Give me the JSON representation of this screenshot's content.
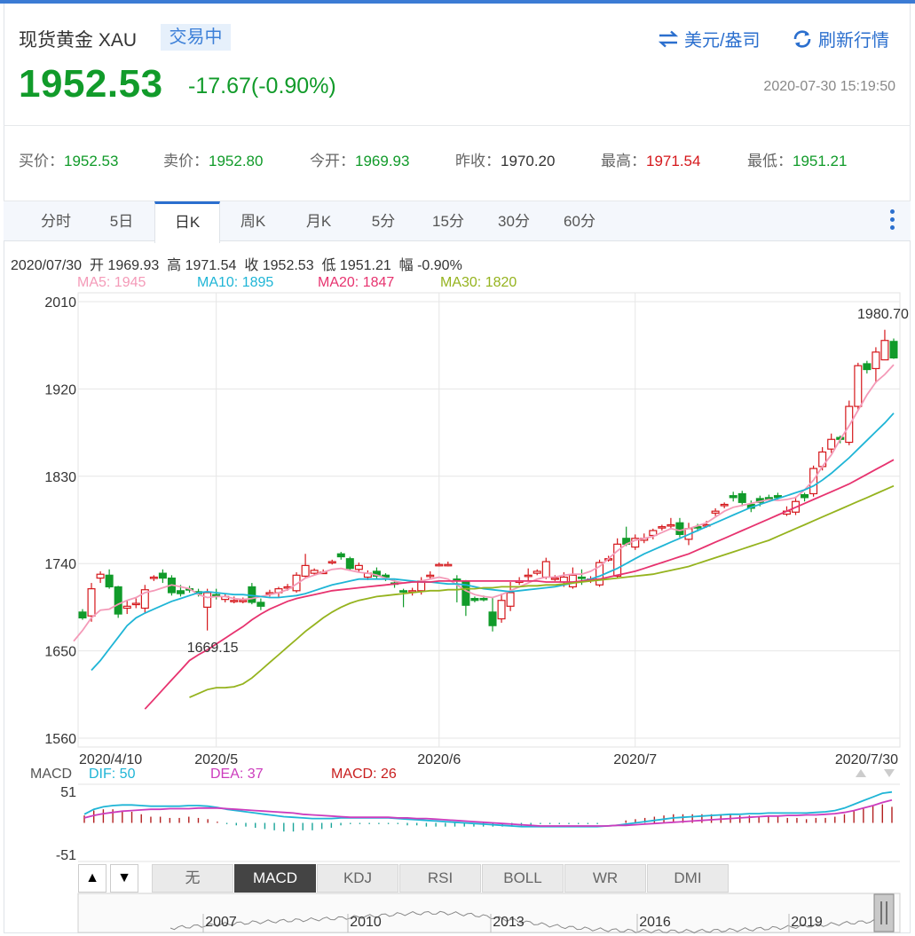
{
  "header": {
    "title": "现货黄金 XAU",
    "status": "交易中",
    "currency_link": "美元/盎司",
    "refresh_link": "刷新行情",
    "price": "1952.53",
    "change": "-17.67(-0.90%)",
    "timestamp": "2020-07-30 15:19:50"
  },
  "quote": [
    {
      "label": "买价：",
      "value": "1952.53",
      "color": "g"
    },
    {
      "label": "卖价：",
      "value": "1952.80",
      "color": "g"
    },
    {
      "label": "今开：",
      "value": "1969.93",
      "color": "g"
    },
    {
      "label": "昨收：",
      "value": "1970.20",
      "color": "k"
    },
    {
      "label": "最高：",
      "value": "1971.54",
      "color": "r"
    },
    {
      "label": "最低：",
      "value": "1951.21",
      "color": "g"
    }
  ],
  "tabs": [
    "分时",
    "5日",
    "日K",
    "周K",
    "月K",
    "5分",
    "15分",
    "30分",
    "60分"
  ],
  "active_tab": "日K",
  "info_line": "2020/07/30  开 1969.93  高 1971.54  收 1952.53  低 1951.21  幅 -0.90%",
  "ma_legend": [
    {
      "label": "MA5: 1945",
      "color": "#f49ab8"
    },
    {
      "label": "MA10: 1895",
      "color": "#1fb5d6"
    },
    {
      "label": "MA20: 1847",
      "color": "#e7336f"
    },
    {
      "label": "MA30: 1820",
      "color": "#95b31e"
    }
  ],
  "macd_legend": {
    "title": "MACD",
    "dif": "DIF: 50",
    "dea": "DEA: 37",
    "macd": "MACD: 26"
  },
  "indicator_buttons": [
    "无",
    "MACD",
    "KDJ",
    "RSI",
    "BOLL",
    "WR",
    "DMI"
  ],
  "active_indicator": "MACD",
  "nav_years": [
    "2007",
    "2010",
    "2013",
    "2016",
    "2019"
  ],
  "colors": {
    "up": "#d5171b",
    "down": "#119b2a",
    "accent": "#2b6fce"
  },
  "chart_data": {
    "type": "candlestick",
    "y_ticks": [
      "2010",
      "1920",
      "1830",
      "1740",
      "1650",
      "1560"
    ],
    "ylim": [
      1560,
      2010
    ],
    "x_labels": [
      "2020/4/10",
      "2020/5",
      "2020/6",
      "2020/7",
      "2020/7/30"
    ],
    "annotations": [
      "1980.70",
      "1669.15"
    ],
    "candles": [
      [
        1690,
        1684,
        1693,
        1682
      ],
      [
        1686,
        1714,
        1720,
        1680
      ],
      [
        1725,
        1729,
        1732,
        1720
      ],
      [
        1728,
        1716,
        1734,
        1714
      ],
      [
        1716,
        1688,
        1717,
        1684
      ],
      [
        1694,
        1696,
        1702,
        1688
      ],
      [
        1699,
        1699,
        1704,
        1694
      ],
      [
        1694,
        1713,
        1718,
        1689
      ],
      [
        1726,
        1726,
        1728,
        1722
      ],
      [
        1730,
        1725,
        1734,
        1720
      ],
      [
        1725,
        1710,
        1728,
        1707
      ],
      [
        1712,
        1709,
        1718,
        1706
      ],
      [
        1714,
        1713,
        1717,
        1710
      ],
      [
        1711,
        1709,
        1714,
        1706
      ],
      [
        1695,
        1710,
        1714,
        1671
      ],
      [
        1708,
        1707,
        1714,
        1703
      ],
      [
        1703,
        1706,
        1709,
        1700
      ],
      [
        1702,
        1702,
        1706,
        1699
      ],
      [
        1702,
        1702,
        1705,
        1699
      ],
      [
        1716,
        1700,
        1720,
        1698
      ],
      [
        1700,
        1696,
        1704,
        1692
      ],
      [
        1710,
        1710,
        1713,
        1706
      ],
      [
        1710,
        1714,
        1716,
        1705
      ],
      [
        1716,
        1716,
        1719,
        1712
      ],
      [
        1712,
        1728,
        1731,
        1710
      ],
      [
        1727,
        1738,
        1750,
        1725
      ],
      [
        1730,
        1733,
        1735,
        1728
      ],
      [
        1731,
        1731,
        1734,
        1730
      ],
      [
        1742,
        1742,
        1744,
        1739
      ],
      [
        1750,
        1747,
        1752,
        1744
      ],
      [
        1745,
        1735,
        1747,
        1733
      ],
      [
        1734,
        1738,
        1741,
        1731
      ],
      [
        1726,
        1730,
        1733,
        1723
      ],
      [
        1732,
        1727,
        1736,
        1724
      ],
      [
        1728,
        1726,
        1730,
        1722
      ],
      [
        1720,
        1719,
        1723,
        1715
      ],
      [
        1712,
        1711,
        1714,
        1695
      ],
      [
        1711,
        1712,
        1715,
        1707
      ],
      [
        1712,
        1722,
        1726,
        1708
      ],
      [
        1727,
        1728,
        1732,
        1724
      ],
      [
        1738,
        1739,
        1741,
        1737
      ],
      [
        1739,
        1739,
        1742,
        1737
      ],
      [
        1724,
        1723,
        1728,
        1700
      ],
      [
        1721,
        1697,
        1723,
        1686
      ],
      [
        1704,
        1702,
        1706,
        1700
      ],
      [
        1704,
        1703,
        1707,
        1701
      ],
      [
        1690,
        1676,
        1705,
        1670
      ],
      [
        1683,
        1702,
        1709,
        1679
      ],
      [
        1696,
        1710,
        1721,
        1691
      ],
      [
        1722,
        1722,
        1726,
        1718
      ],
      [
        1727,
        1728,
        1735,
        1722
      ],
      [
        1730,
        1732,
        1734,
        1728
      ],
      [
        1726,
        1742,
        1746,
        1724
      ],
      [
        1725,
        1725,
        1728,
        1722
      ],
      [
        1721,
        1726,
        1731,
        1716
      ],
      [
        1716,
        1728,
        1736,
        1714
      ],
      [
        1726,
        1725,
        1734,
        1718
      ],
      [
        1724,
        1724,
        1727,
        1720
      ],
      [
        1718,
        1741,
        1744,
        1716
      ],
      [
        1745,
        1745,
        1748,
        1742
      ],
      [
        1727,
        1760,
        1766,
        1725
      ],
      [
        1766,
        1760,
        1778,
        1758
      ],
      [
        1757,
        1766,
        1770,
        1754
      ],
      [
        1764,
        1766,
        1771,
        1761
      ],
      [
        1769,
        1774,
        1776,
        1765
      ],
      [
        1777,
        1778,
        1780,
        1774
      ],
      [
        1779,
        1780,
        1787,
        1776
      ],
      [
        1782,
        1770,
        1787,
        1767
      ],
      [
        1765,
        1776,
        1782,
        1759
      ],
      [
        1778,
        1777,
        1781,
        1773
      ],
      [
        1779,
        1780,
        1784,
        1777
      ],
      [
        1792,
        1794,
        1797,
        1789
      ],
      [
        1800,
        1801,
        1803,
        1797
      ],
      [
        1810,
        1808,
        1814,
        1804
      ],
      [
        1812,
        1803,
        1815,
        1799
      ],
      [
        1801,
        1797,
        1805,
        1793
      ],
      [
        1807,
        1803,
        1810,
        1799
      ],
      [
        1808,
        1807,
        1811,
        1805
      ],
      [
        1810,
        1808,
        1813,
        1806
      ],
      [
        1791,
        1794,
        1799,
        1789
      ],
      [
        1793,
        1804,
        1809,
        1790
      ],
      [
        1811,
        1808,
        1813,
        1804
      ],
      [
        1812,
        1838,
        1841,
        1809
      ],
      [
        1840,
        1855,
        1860,
        1836
      ],
      [
        1858,
        1868,
        1874,
        1854
      ],
      [
        1870,
        1868,
        1872,
        1864
      ],
      [
        1865,
        1902,
        1908,
        1862
      ],
      [
        1902,
        1944,
        1947,
        1898
      ],
      [
        1946,
        1940,
        1949,
        1936
      ],
      [
        1941,
        1958,
        1963,
        1926
      ],
      [
        1950,
        1970,
        1981,
        1950
      ],
      [
        1969,
        1952,
        1972,
        1951
      ]
    ],
    "ma": {
      "MA5": [
        1660,
        1671,
        1684,
        1692,
        1693,
        1698,
        1702,
        1705,
        1710,
        1712,
        1715,
        1718,
        1716,
        1714,
        1708,
        1705,
        1706,
        1706,
        1704,
        1703,
        1704,
        1706,
        1708,
        1710,
        1713,
        1719,
        1725,
        1728,
        1731,
        1734,
        1735,
        1733,
        1731,
        1730,
        1728,
        1725,
        1722,
        1720,
        1721,
        1722,
        1724,
        1726,
        1724,
        1718,
        1712,
        1708,
        1706,
        1705,
        1708,
        1712,
        1716,
        1720,
        1724,
        1726,
        1726,
        1728,
        1729,
        1729,
        1732,
        1737,
        1745,
        1753,
        1760,
        1764,
        1766,
        1768,
        1772,
        1776,
        1774,
        1776,
        1779,
        1782,
        1788,
        1794,
        1798,
        1800,
        1802,
        1804,
        1806,
        1805,
        1806,
        1808,
        1816,
        1826,
        1840,
        1852,
        1868,
        1882,
        1898,
        1914,
        1927,
        1935,
        1945
      ],
      "MA10": [
        1630,
        1640,
        1652,
        1664,
        1676,
        1684,
        1689,
        1693,
        1697,
        1701,
        1704,
        1707,
        1710,
        1711,
        1710,
        1709,
        1708,
        1708,
        1707,
        1706,
        1705,
        1705,
        1706,
        1707,
        1709,
        1712,
        1715,
        1718,
        1720,
        1722,
        1724,
        1724,
        1724,
        1724,
        1724,
        1723,
        1722,
        1721,
        1721,
        1720,
        1719,
        1719,
        1718,
        1716,
        1714,
        1713,
        1712,
        1711,
        1712,
        1713,
        1714,
        1715,
        1716,
        1718,
        1720,
        1722,
        1724,
        1727,
        1731,
        1735,
        1740,
        1745,
        1750,
        1754,
        1758,
        1762,
        1766,
        1770,
        1774,
        1778,
        1782,
        1786,
        1790,
        1794,
        1798,
        1801,
        1804,
        1807,
        1810,
        1813,
        1816,
        1820,
        1826,
        1833,
        1841,
        1849,
        1858,
        1867,
        1876,
        1885,
        1895
      ],
      "MA20": [
        1590,
        1600,
        1610,
        1620,
        1630,
        1640,
        1646,
        1651,
        1657,
        1663,
        1669,
        1675,
        1682,
        1688,
        1693,
        1697,
        1701,
        1704,
        1706,
        1708,
        1710,
        1712,
        1713,
        1714,
        1715,
        1716,
        1717,
        1718,
        1719,
        1720,
        1721,
        1721,
        1721,
        1722,
        1722,
        1722,
        1722,
        1722,
        1722,
        1722,
        1722,
        1722,
        1722,
        1722,
        1722,
        1721,
        1721,
        1721,
        1721,
        1722,
        1723,
        1724,
        1726,
        1728,
        1730,
        1732,
        1735,
        1738,
        1741,
        1744,
        1747,
        1750,
        1754,
        1758,
        1762,
        1766,
        1770,
        1774,
        1778,
        1782,
        1786,
        1790,
        1794,
        1798,
        1802,
        1806,
        1810,
        1814,
        1818,
        1822,
        1827,
        1832,
        1837,
        1842,
        1847
      ],
      "MA30": [
        1602,
        1606,
        1610,
        1612,
        1612,
        1613,
        1616,
        1622,
        1630,
        1638,
        1646,
        1654,
        1662,
        1670,
        1677,
        1684,
        1690,
        1695,
        1699,
        1702,
        1704,
        1706,
        1707,
        1708,
        1709,
        1710,
        1711,
        1712,
        1712,
        1713,
        1713,
        1714,
        1714,
        1715,
        1715,
        1716,
        1716,
        1716,
        1717,
        1717,
        1718,
        1718,
        1719,
        1720,
        1721,
        1722,
        1723,
        1724,
        1725,
        1726,
        1727,
        1728,
        1729,
        1731,
        1733,
        1735,
        1737,
        1740,
        1743,
        1746,
        1749,
        1752,
        1755,
        1758,
        1761,
        1764,
        1768,
        1772,
        1776,
        1780,
        1784,
        1788,
        1792,
        1796,
        1800,
        1804,
        1808,
        1812,
        1816,
        1820
      ]
    },
    "macd": {
      "ylim": [
        -51,
        51
      ],
      "y_ticks": [
        "51",
        "-51"
      ],
      "dif": [
        14,
        22,
        26,
        28,
        29,
        29,
        28,
        27,
        27,
        27,
        27,
        28,
        28,
        27,
        25,
        22,
        20,
        18,
        16,
        14,
        12,
        10,
        9,
        8,
        7,
        7,
        7,
        8,
        8,
        8,
        8,
        8,
        8,
        7,
        6,
        5,
        4,
        3,
        2,
        1,
        0,
        -1,
        -2,
        -3,
        -4,
        -5,
        -6,
        -6,
        -6,
        -6,
        -6,
        -6,
        -6,
        -6,
        -6,
        -5,
        -4,
        -2,
        0,
        2,
        4,
        6,
        8,
        9,
        10,
        11,
        12,
        13,
        14,
        14,
        15,
        15,
        16,
        16,
        16,
        16,
        16,
        17,
        18,
        20,
        24,
        30,
        36,
        42,
        48,
        50
      ],
      "dea": [
        8,
        12,
        15,
        17,
        19,
        20,
        21,
        22,
        22,
        23,
        23,
        23,
        24,
        24,
        24,
        23,
        22,
        21,
        20,
        19,
        18,
        17,
        16,
        14,
        13,
        12,
        11,
        10,
        9,
        9,
        9,
        9,
        9,
        8,
        8,
        7,
        7,
        6,
        5,
        4,
        3,
        2,
        1,
        0,
        -1,
        -2,
        -3,
        -4,
        -5,
        -5,
        -5,
        -5,
        -5,
        -5,
        -5,
        -5,
        -4,
        -4,
        -3,
        -2,
        -1,
        0,
        1,
        2,
        3,
        4,
        5,
        6,
        7,
        8,
        9,
        10,
        11,
        11,
        12,
        12,
        13,
        13,
        14,
        15,
        17,
        20,
        24,
        28,
        33,
        37
      ]
    }
  }
}
